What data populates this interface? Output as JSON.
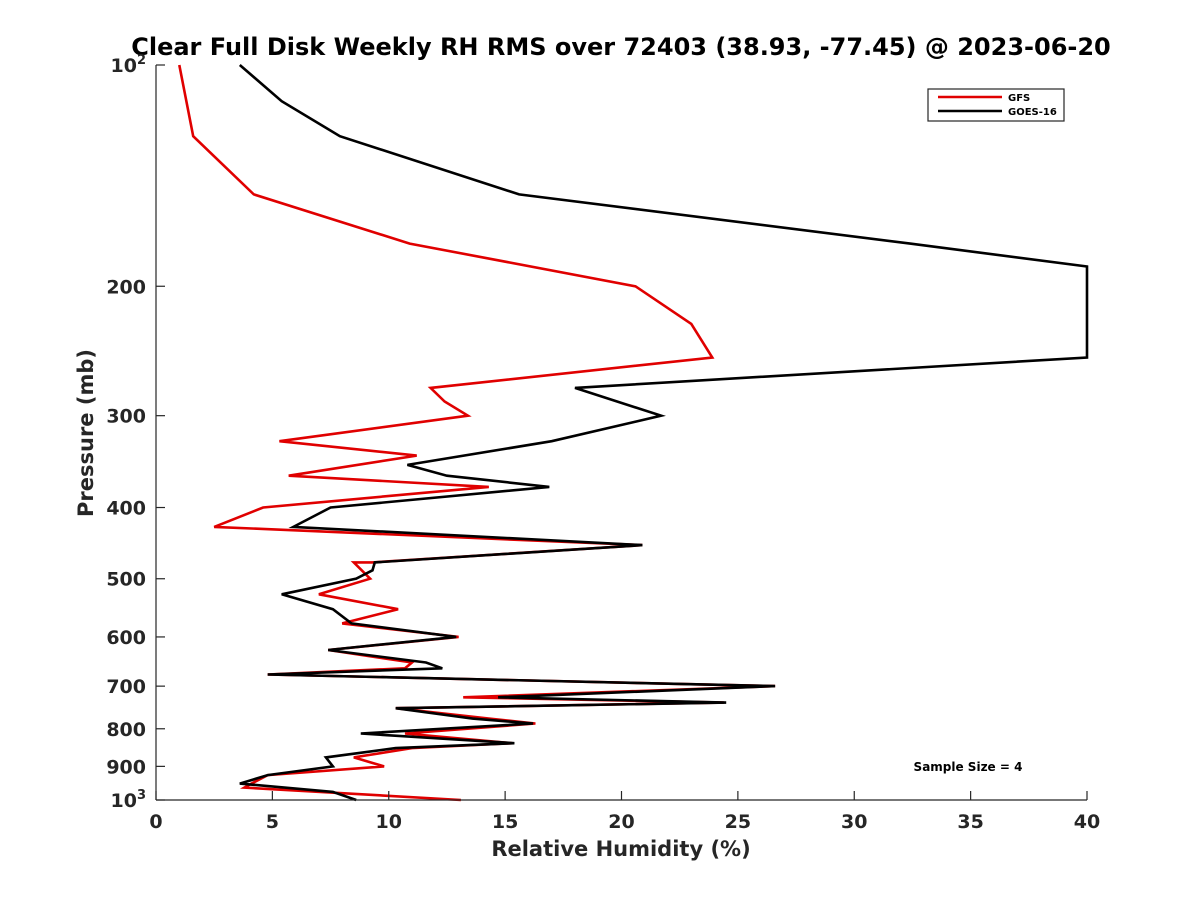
{
  "chart_data": {
    "type": "line",
    "title": "Clear Full Disk Weekly RH RMS over 72403 (38.93, -77.45) @ 2023-06-20",
    "xlabel": "Relative Humidity (%)",
    "ylabel": "Pressure (mb)",
    "xlim": [
      0,
      40
    ],
    "ylim": [
      100,
      1000
    ],
    "y_scale": "log",
    "y_reversed": true,
    "grid": false,
    "legend_position": "top-right",
    "x_ticks": [
      "0",
      "5",
      "10",
      "15",
      "20",
      "25",
      "30",
      "35",
      "40"
    ],
    "y_ticks": [
      {
        "value": 100,
        "base": "10",
        "exp": "2"
      },
      {
        "value": 200,
        "label": "200"
      },
      {
        "value": 300,
        "label": "300"
      },
      {
        "value": 400,
        "label": "400"
      },
      {
        "value": 500,
        "label": "500"
      },
      {
        "value": 600,
        "label": "600"
      },
      {
        "value": 700,
        "label": "700"
      },
      {
        "value": 800,
        "label": "800"
      },
      {
        "value": 900,
        "label": "900"
      },
      {
        "value": 1000,
        "base": "10",
        "exp": "3"
      }
    ],
    "annotation": "Sample Size = 4",
    "series": [
      {
        "name": "GFS",
        "color": "#e00000",
        "points": [
          [
            1.0,
            100
          ],
          [
            1.6,
            125
          ],
          [
            4.2,
            150
          ],
          [
            10.9,
            175
          ],
          [
            20.6,
            200
          ],
          [
            23.0,
            225
          ],
          [
            23.9,
            250
          ],
          [
            11.8,
            275
          ],
          [
            12.4,
            287
          ],
          [
            13.4,
            300
          ],
          [
            5.3,
            325
          ],
          [
            11.2,
            340
          ],
          [
            5.7,
            362
          ],
          [
            14.3,
            375
          ],
          [
            4.6,
            400
          ],
          [
            2.5,
            425
          ],
          [
            20.9,
            450
          ],
          [
            9.3,
            475
          ],
          [
            8.5,
            475
          ],
          [
            9.2,
            500
          ],
          [
            7.0,
            525
          ],
          [
            10.4,
            550
          ],
          [
            8.0,
            575
          ],
          [
            13.0,
            600
          ],
          [
            7.4,
            625
          ],
          [
            11.0,
            650
          ],
          [
            10.7,
            662
          ],
          [
            4.8,
            675
          ],
          [
            26.6,
            700
          ],
          [
            13.2,
            725
          ],
          [
            24.4,
            737
          ],
          [
            10.3,
            750
          ],
          [
            14.3,
            775
          ],
          [
            16.3,
            787
          ],
          [
            10.7,
            812
          ],
          [
            15.3,
            837
          ],
          [
            11.0,
            850
          ],
          [
            8.5,
            875
          ],
          [
            9.8,
            900
          ],
          [
            4.8,
            925
          ],
          [
            4.1,
            950
          ],
          [
            3.8,
            962
          ],
          [
            13.1,
            1000
          ]
        ]
      },
      {
        "name": "GOES-16",
        "color": "#000000",
        "points": [
          [
            3.6,
            100
          ],
          [
            5.4,
            112
          ],
          [
            7.9,
            125
          ],
          [
            15.6,
            150
          ],
          [
            32.4,
            175
          ],
          [
            40.0,
            188
          ],
          [
            40.0,
            250
          ],
          [
            18.0,
            275
          ],
          [
            21.7,
            300
          ],
          [
            17.0,
            325
          ],
          [
            10.8,
            350
          ],
          [
            12.5,
            362
          ],
          [
            16.9,
            375
          ],
          [
            7.5,
            400
          ],
          [
            5.9,
            425
          ],
          [
            20.9,
            450
          ],
          [
            9.4,
            475
          ],
          [
            9.3,
            487
          ],
          [
            8.6,
            500
          ],
          [
            5.4,
            525
          ],
          [
            7.6,
            550
          ],
          [
            8.4,
            575
          ],
          [
            12.9,
            600
          ],
          [
            7.4,
            625
          ],
          [
            11.6,
            650
          ],
          [
            12.3,
            662
          ],
          [
            4.8,
            675
          ],
          [
            26.6,
            700
          ],
          [
            14.7,
            725
          ],
          [
            24.5,
            737
          ],
          [
            10.3,
            750
          ],
          [
            13.6,
            775
          ],
          [
            16.2,
            787
          ],
          [
            8.8,
            812
          ],
          [
            15.4,
            837
          ],
          [
            10.3,
            850
          ],
          [
            7.3,
            875
          ],
          [
            7.6,
            900
          ],
          [
            4.8,
            925
          ],
          [
            3.6,
            950
          ],
          [
            7.6,
            975
          ],
          [
            8.6,
            1000
          ]
        ]
      }
    ]
  }
}
